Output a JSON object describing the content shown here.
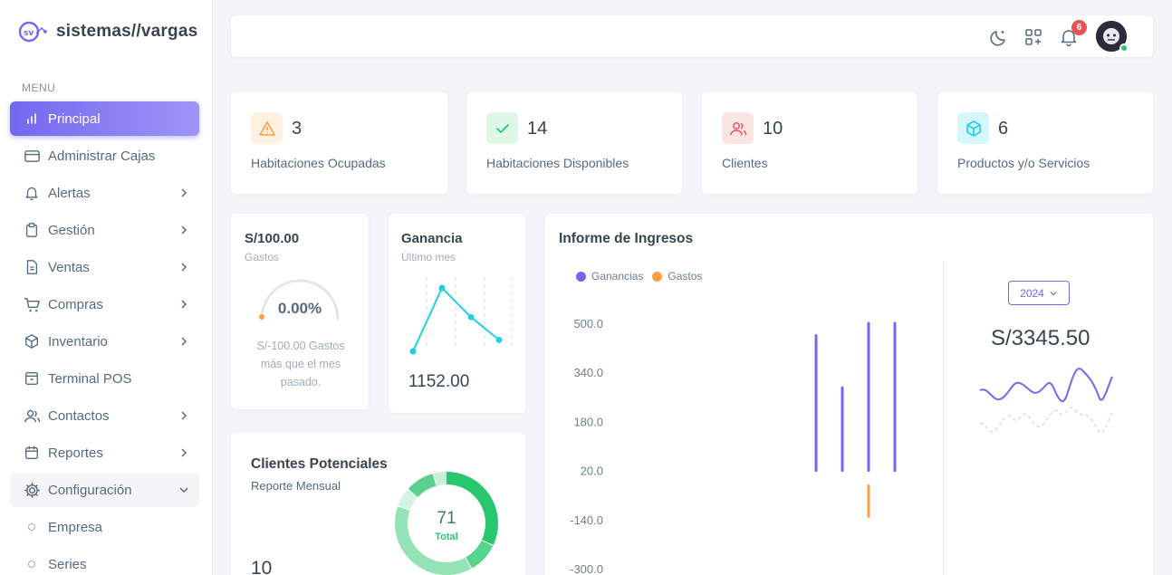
{
  "brand": {
    "name": "sistemas//vargas"
  },
  "sidebar": {
    "header": "MENU",
    "items": [
      {
        "label": "Principal",
        "icon": "chart-bars-icon",
        "active": true,
        "chevron": "none"
      },
      {
        "label": "Administrar Cajas",
        "icon": "credit-card-icon",
        "chevron": "none"
      },
      {
        "label": "Alertas",
        "icon": "bell-icon",
        "chevron": "right"
      },
      {
        "label": "Gestión",
        "icon": "clipboard-icon",
        "chevron": "right"
      },
      {
        "label": "Ventas",
        "icon": "file-text-icon",
        "chevron": "right"
      },
      {
        "label": "Compras",
        "icon": "shopping-cart-icon",
        "chevron": "right"
      },
      {
        "label": "Inventario",
        "icon": "box-icon",
        "chevron": "right"
      },
      {
        "label": "Terminal POS",
        "icon": "archive-icon",
        "chevron": "none"
      },
      {
        "label": "Contactos",
        "icon": "users-icon",
        "chevron": "right"
      },
      {
        "label": "Reportes",
        "icon": "calendar-icon",
        "chevron": "right"
      },
      {
        "label": "Configuración",
        "icon": "gear-icon",
        "chevron": "down",
        "open": true
      }
    ],
    "subitems": [
      {
        "label": "Empresa"
      },
      {
        "label": "Series"
      }
    ]
  },
  "navbar": {
    "icons": [
      "moon-icon",
      "grid-plus-icon",
      "bell-icon",
      "avatar"
    ],
    "notifications": "6"
  },
  "stats": [
    {
      "value": "3",
      "label": "Habitaciones Ocupadas",
      "icon": "alert-triangle-icon",
      "color": "#ff9f43",
      "bg": "#fff0e1"
    },
    {
      "value": "14",
      "label": "Habitaciones Disponibles",
      "icon": "check-icon",
      "color": "#28c76f",
      "bg": "#dff7e9"
    },
    {
      "value": "10",
      "label": "Clientes",
      "icon": "users-icon",
      "color": "#ea5455",
      "bg": "#fce4e4"
    },
    {
      "value": "6",
      "label": "Productos y/o Servicios",
      "icon": "cube-icon",
      "color": "#00cfe8",
      "bg": "#d6f7fb"
    }
  ],
  "gastos": {
    "amount": "S/100.00",
    "label": "Gastos",
    "gauge_value": "0.00%",
    "gauge_fraction": 0.0,
    "note": "S/-100.00 Gastos más que el mes pasado."
  },
  "ganancia": {
    "title": "Ganancia",
    "sub": "Último mes",
    "value": "1152.00",
    "spark": [
      0.0,
      1.0,
      0.54,
      0.18
    ]
  },
  "clientes_potenciales": {
    "title": "Clientes Potenciales",
    "sub": "Reporte Mensual",
    "value": "10",
    "donut_total": "71",
    "donut_label": "Total"
  },
  "informe": {
    "title": "Informe de Ingresos",
    "year": "2024",
    "amount": "S/3345.50",
    "colors": {
      "ganancias": "#7367f0",
      "gastos": "#ff9f43"
    }
  },
  "chart_data": {
    "type": "bar",
    "ylim": [
      -300,
      500
    ],
    "yticks": [
      "500.0",
      "340.0",
      "180.0",
      "20.0",
      "-140.0",
      "-300.0"
    ],
    "series": [
      {
        "name": "Ganancias",
        "values": [
          460,
          290,
          500,
          500
        ]
      },
      {
        "name": "Gastos",
        "values": [
          0,
          0,
          -100,
          0
        ]
      }
    ],
    "legend": "top-left"
  }
}
